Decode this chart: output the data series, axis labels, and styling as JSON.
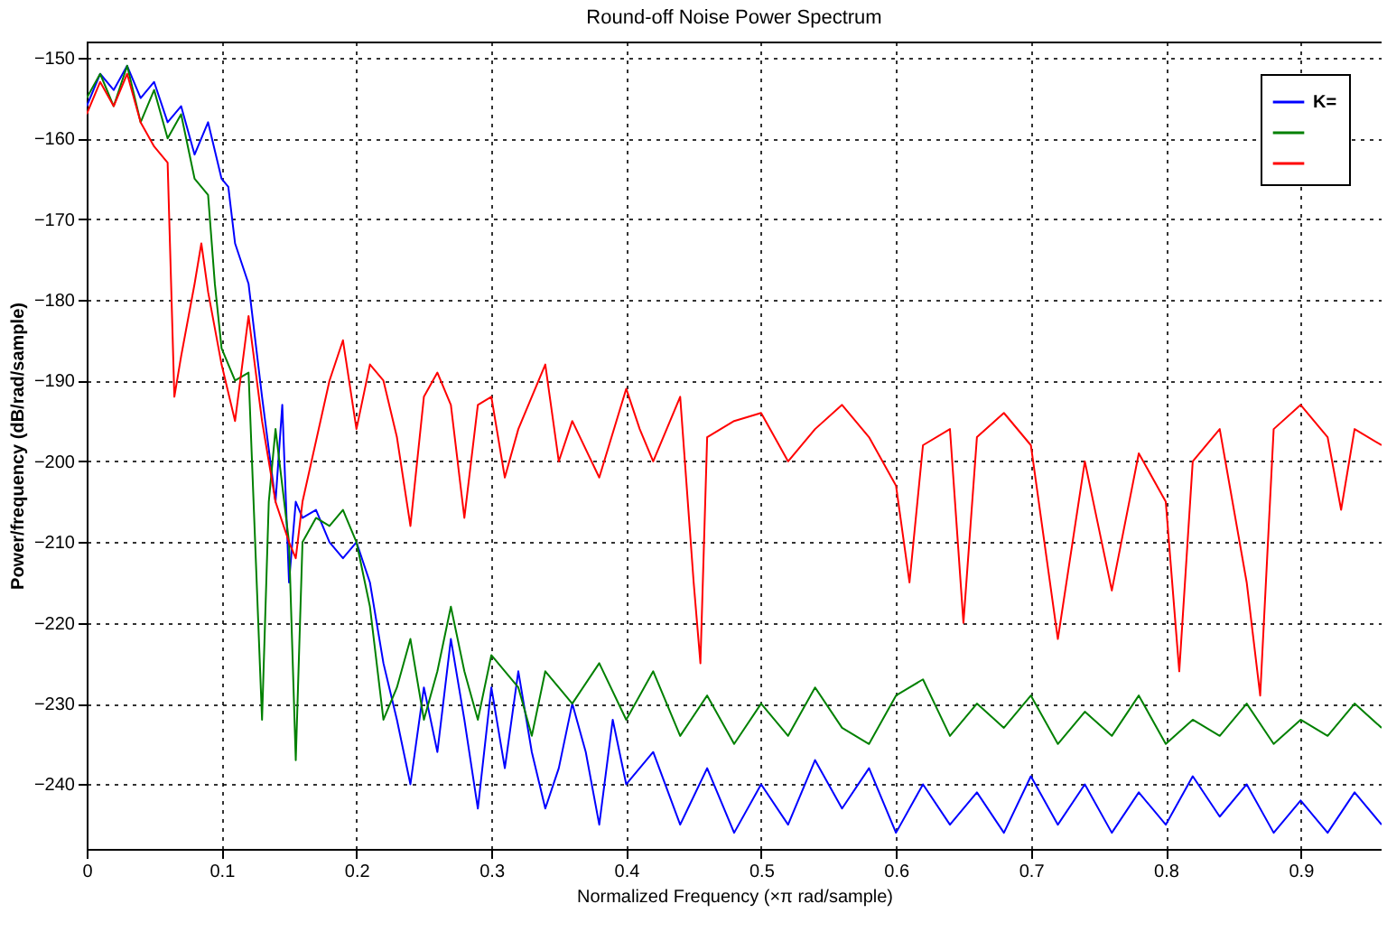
{
  "chart_data": {
    "type": "line",
    "title": "Round-off Noise Power Spectrum",
    "xlabel": "Normalized Frequency (×π rad/sample)",
    "ylabel": "Power/frequency (dB/rad/sample)",
    "xlim": [
      0,
      0.96
    ],
    "xticks": [
      0,
      0.1,
      0.2,
      0.3,
      0.4,
      0.5,
      0.6,
      0.7,
      0.8,
      0.9
    ],
    "ylim": [
      -248,
      -148
    ],
    "yticks": [
      -150,
      -160,
      -170,
      -180,
      -190,
      -200,
      -210,
      -220,
      -230,
      -240
    ],
    "grid": true,
    "legend": "top right",
    "line_style": "solid",
    "series": [
      {
        "name": "K=",
        "color": "#0000ff",
        "x": [
          0,
          0.01,
          0.02,
          0.03,
          0.04,
          0.05,
          0.06,
          0.07,
          0.08,
          0.09,
          0.1,
          0.105,
          0.11,
          0.12,
          0.13,
          0.14,
          0.145,
          0.15,
          0.155,
          0.16,
          0.17,
          0.18,
          0.19,
          0.2,
          0.21,
          0.22,
          0.23,
          0.24,
          0.25,
          0.26,
          0.27,
          0.28,
          0.29,
          0.3,
          0.31,
          0.32,
          0.33,
          0.34,
          0.35,
          0.36,
          0.37,
          0.38,
          0.39,
          0.4,
          0.42,
          0.44,
          0.46,
          0.48,
          0.5,
          0.52,
          0.54,
          0.56,
          0.58,
          0.6,
          0.62,
          0.64,
          0.66,
          0.68,
          0.7,
          0.72,
          0.74,
          0.76,
          0.78,
          0.8,
          0.82,
          0.84,
          0.86,
          0.88,
          0.9,
          0.92,
          0.94,
          0.96
        ],
        "values": [
          -156,
          -152,
          -154,
          -151,
          -155,
          -153,
          -158,
          -156,
          -162,
          -158,
          -165,
          -166,
          -173,
          -178,
          -192,
          -205,
          -193,
          -215,
          -205,
          -207,
          -206,
          -210,
          -212,
          -210,
          -215,
          -225,
          -232,
          -240,
          -228,
          -236,
          -222,
          -232,
          -243,
          -228,
          -238,
          -226,
          -236,
          -243,
          -238,
          -230,
          -236,
          -245,
          -232,
          -240,
          -236,
          -245,
          -238,
          -246,
          -240,
          -245,
          -237,
          -243,
          -238,
          -246,
          -240,
          -245,
          -241,
          -246,
          -239,
          -245,
          -240,
          -246,
          -241,
          -245,
          -239,
          -244,
          -240,
          -246,
          -242,
          -246,
          -241,
          -245
        ]
      },
      {
        "color": "#008000",
        "x": [
          0,
          0.01,
          0.02,
          0.03,
          0.04,
          0.05,
          0.06,
          0.07,
          0.08,
          0.09,
          0.095,
          0.1,
          0.11,
          0.12,
          0.13,
          0.135,
          0.14,
          0.15,
          0.155,
          0.16,
          0.17,
          0.18,
          0.19,
          0.2,
          0.21,
          0.22,
          0.23,
          0.24,
          0.25,
          0.26,
          0.27,
          0.28,
          0.29,
          0.3,
          0.32,
          0.33,
          0.34,
          0.36,
          0.38,
          0.4,
          0.42,
          0.44,
          0.46,
          0.48,
          0.5,
          0.52,
          0.54,
          0.56,
          0.58,
          0.6,
          0.62,
          0.64,
          0.66,
          0.68,
          0.7,
          0.72,
          0.74,
          0.76,
          0.78,
          0.8,
          0.82,
          0.84,
          0.86,
          0.88,
          0.9,
          0.92,
          0.94,
          0.96
        ],
        "values": [
          -155,
          -152,
          -156,
          -151,
          -158,
          -154,
          -160,
          -157,
          -165,
          -167,
          -178,
          -186,
          -190,
          -189,
          -232,
          -205,
          -196,
          -210,
          -237,
          -210,
          -207,
          -208,
          -206,
          -210,
          -218,
          -232,
          -228,
          -222,
          -232,
          -226,
          -218,
          -226,
          -232,
          -224,
          -228,
          -234,
          -226,
          -230,
          -225,
          -232,
          -226,
          -234,
          -229,
          -235,
          -230,
          -234,
          -228,
          -233,
          -235,
          -229,
          -227,
          -234,
          -230,
          -233,
          -229,
          -235,
          -231,
          -234,
          -229,
          -235,
          -232,
          -234,
          -230,
          -235,
          -232,
          -234,
          -230,
          -233
        ]
      },
      {
        "color": "#ff0000",
        "x": [
          0,
          0.01,
          0.02,
          0.03,
          0.04,
          0.05,
          0.06,
          0.065,
          0.07,
          0.08,
          0.085,
          0.09,
          0.1,
          0.11,
          0.12,
          0.13,
          0.14,
          0.15,
          0.155,
          0.16,
          0.18,
          0.19,
          0.2,
          0.21,
          0.22,
          0.23,
          0.24,
          0.25,
          0.26,
          0.27,
          0.28,
          0.29,
          0.3,
          0.31,
          0.32,
          0.34,
          0.35,
          0.36,
          0.38,
          0.4,
          0.41,
          0.42,
          0.43,
          0.44,
          0.45,
          0.455,
          0.46,
          0.48,
          0.5,
          0.52,
          0.54,
          0.56,
          0.58,
          0.6,
          0.61,
          0.62,
          0.64,
          0.65,
          0.66,
          0.68,
          0.7,
          0.72,
          0.74,
          0.76,
          0.78,
          0.8,
          0.81,
          0.82,
          0.84,
          0.86,
          0.87,
          0.88,
          0.9,
          0.92,
          0.93,
          0.94,
          0.96
        ],
        "values": [
          -157,
          -153,
          -156,
          -152,
          -158,
          -161,
          -163,
          -192,
          -187,
          -178,
          -173,
          -179,
          -188,
          -195,
          -182,
          -195,
          -205,
          -210,
          -212,
          -205,
          -190,
          -185,
          -196,
          -188,
          -190,
          -197,
          -208,
          -192,
          -189,
          -193,
          -207,
          -193,
          -192,
          -202,
          -196,
          -188,
          -200,
          -195,
          -202,
          -191,
          -196,
          -200,
          -196,
          -192,
          -215,
          -225,
          -197,
          -195,
          -194,
          -200,
          -196,
          -193,
          -197,
          -203,
          -215,
          -198,
          -196,
          -220,
          -197,
          -194,
          -198,
          -222,
          -200,
          -216,
          -199,
          -205,
          -226,
          -200,
          -196,
          -215,
          -229,
          -196,
          -193,
          -197,
          -206,
          -196,
          -198
        ]
      }
    ]
  }
}
